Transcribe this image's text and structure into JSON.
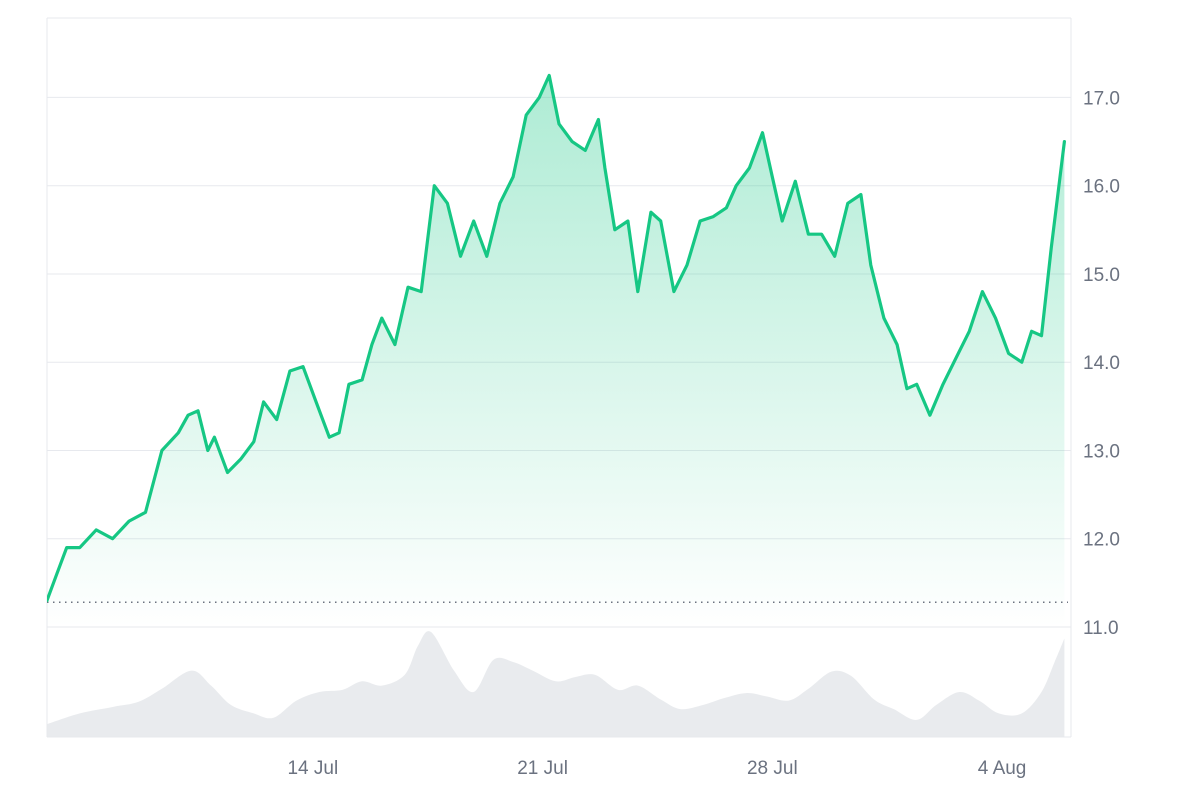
{
  "chart_data": {
    "type": "area",
    "title": "",
    "xlabel": "",
    "ylabel": "",
    "x_ticks": [
      "14 Jul",
      "21 Jul",
      "28 Jul",
      "4 Aug"
    ],
    "y_ticks": [
      "11.0",
      "12.0",
      "13.0",
      "14.0",
      "15.0",
      "16.0",
      "17.0"
    ],
    "ylim": [
      11.0,
      17.9
    ],
    "xlim": [
      0,
      31.2
    ],
    "grid": true,
    "legend": "none",
    "baseline": 11.28,
    "colors": {
      "line": "#16c784",
      "fill_top": "#16c784",
      "baseline": "#6b7280",
      "grid": "#e7e9ee",
      "volume": "#e5e7eb"
    },
    "series": [
      {
        "x": [
          0,
          0.3,
          0.6,
          1.0,
          1.5,
          2.0,
          2.5,
          3.0,
          3.5,
          4.0,
          4.3,
          4.6,
          4.9,
          5.1,
          5.5,
          5.9,
          6.3,
          6.6,
          7.0,
          7.4,
          7.8,
          8.2,
          8.6,
          8.9,
          9.2,
          9.6,
          9.9,
          10.2,
          10.6,
          11.0,
          11.4,
          11.8,
          12.2,
          12.6,
          13.0,
          13.4,
          13.8,
          14.2,
          14.6,
          15.0,
          15.3,
          15.6,
          16.0,
          16.4,
          16.8,
          17.0,
          17.3,
          17.7,
          18.0,
          18.4,
          18.7,
          19.1,
          19.5,
          19.9,
          20.3,
          20.7,
          21.0,
          21.4,
          21.8,
          22.1,
          22.4,
          22.8,
          23.2,
          23.6,
          24.0,
          24.4,
          24.8,
          25.1,
          25.5,
          25.9,
          26.2,
          26.5,
          26.9,
          27.3,
          27.7,
          28.1,
          28.5,
          28.9,
          29.3,
          29.7,
          30.0,
          30.3,
          30.6,
          31.0
        ],
        "values": [
          11.3,
          11.6,
          11.9,
          11.9,
          12.1,
          12.0,
          12.2,
          12.3,
          13.0,
          13.2,
          13.4,
          13.45,
          13.0,
          13.15,
          12.75,
          12.9,
          13.1,
          13.55,
          13.35,
          13.9,
          13.95,
          13.55,
          13.15,
          13.2,
          13.75,
          13.8,
          14.2,
          14.5,
          14.2,
          14.85,
          14.8,
          16.0,
          15.8,
          15.2,
          15.6,
          15.2,
          15.8,
          16.1,
          16.8,
          17.0,
          17.25,
          16.7,
          16.5,
          16.4,
          16.75,
          16.2,
          15.5,
          15.6,
          14.8,
          15.7,
          15.6,
          14.8,
          15.1,
          15.6,
          15.65,
          15.75,
          16.0,
          16.2,
          16.6,
          16.1,
          15.6,
          16.05,
          15.45,
          15.45,
          15.2,
          15.8,
          15.9,
          15.1,
          14.5,
          14.2,
          13.7,
          13.75,
          13.4,
          13.75,
          14.05,
          14.35,
          14.8,
          14.5,
          14.1,
          14.0,
          14.35,
          14.3,
          15.3,
          16.5
        ]
      }
    ],
    "volume": {
      "x": [
        0,
        1,
        2,
        2.8,
        3.5,
        4.4,
        5.0,
        5.6,
        6.3,
        6.9,
        7.6,
        8.3,
        9.0,
        9.6,
        10.2,
        10.9,
        11.3,
        11.7,
        12.4,
        13.0,
        13.6,
        14.2,
        14.8,
        15.5,
        16.1,
        16.7,
        17.4,
        18.0,
        18.7,
        19.3,
        20.0,
        20.6,
        21.3,
        21.9,
        22.6,
        23.2,
        23.9,
        24.5,
        25.2,
        25.8,
        26.5,
        27.1,
        27.8,
        28.4,
        29.0,
        29.7,
        30.3,
        30.7,
        31.0
      ],
      "values": [
        0.12,
        0.22,
        0.28,
        0.33,
        0.45,
        0.62,
        0.48,
        0.3,
        0.22,
        0.18,
        0.34,
        0.42,
        0.44,
        0.52,
        0.48,
        0.58,
        0.85,
        0.98,
        0.62,
        0.42,
        0.72,
        0.7,
        0.62,
        0.52,
        0.56,
        0.58,
        0.44,
        0.48,
        0.35,
        0.26,
        0.3,
        0.36,
        0.41,
        0.38,
        0.34,
        0.45,
        0.61,
        0.57,
        0.35,
        0.26,
        0.16,
        0.3,
        0.42,
        0.34,
        0.22,
        0.22,
        0.42,
        0.7,
        0.92
      ]
    }
  }
}
